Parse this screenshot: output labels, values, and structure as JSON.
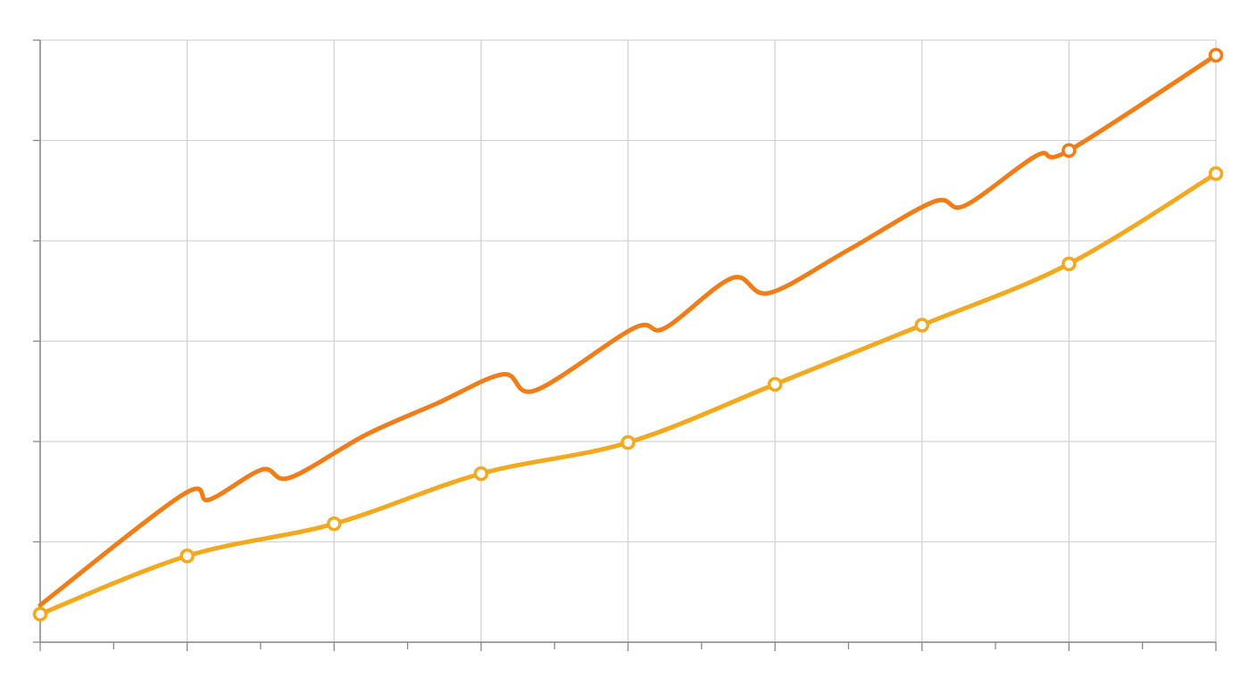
{
  "chart_data": {
    "type": "line",
    "xlim": [
      0,
      8
    ],
    "xticks": [
      0,
      1,
      2,
      3,
      4,
      5,
      6,
      7,
      8
    ],
    "x_minor_ticks": [
      0.5,
      1.5,
      2.5,
      3.5,
      4.5,
      5.5,
      6.5,
      7.5
    ],
    "ylim": [
      0,
      6
    ],
    "yticks": [
      0,
      1,
      2,
      3,
      4,
      5,
      6
    ],
    "grid": true,
    "series": [
      {
        "color": "#f07d17",
        "x": [
          0,
          0.97,
          1.15,
          1.51,
          1.7,
          2.22,
          2.7,
          3.15,
          3.37,
          4.04,
          4.25,
          4.71,
          4.96,
          5.5,
          6.08,
          6.29,
          6.78,
          7,
          8
        ],
        "values": [
          0.37,
          1.47,
          1.42,
          1.72,
          1.64,
          2.07,
          2.38,
          2.67,
          2.51,
          3.13,
          3.13,
          3.63,
          3.48,
          3.91,
          4.39,
          4.35,
          4.85,
          4.9,
          5.85
        ],
        "marker_indices": [
          17,
          18
        ]
      },
      {
        "color": "#f2a81f",
        "x": [
          0,
          1,
          2,
          3,
          4,
          5,
          6,
          7,
          8
        ],
        "values": [
          0.28,
          0.86,
          1.18,
          1.68,
          1.99,
          2.57,
          3.16,
          3.77,
          4.67
        ],
        "marker_indices": [
          0,
          1,
          2,
          3,
          4,
          5,
          6,
          7,
          8
        ]
      }
    ]
  }
}
